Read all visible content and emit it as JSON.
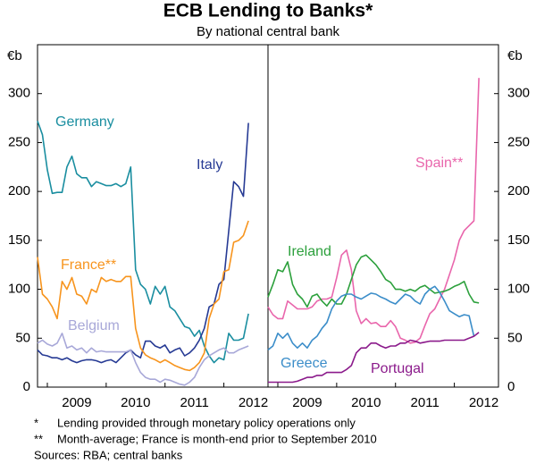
{
  "title": "ECB Lending to Banks*",
  "subtitle": "By national central bank",
  "notes": [
    {
      "marker": "*",
      "text": "Lending provided through monetary policy operations only"
    },
    {
      "marker": "**",
      "text": "Month-average; France is month-end prior to September 2010"
    }
  ],
  "sources": "Sources: RBA; central banks",
  "chart_data": [
    {
      "type": "line",
      "y_unit": "€b",
      "axis_side": "left",
      "x": [
        2008.833,
        2008.917,
        2009,
        2009.083,
        2009.167,
        2009.25,
        2009.333,
        2009.417,
        2009.5,
        2009.583,
        2009.667,
        2009.75,
        2009.833,
        2009.917,
        2010,
        2010.083,
        2010.167,
        2010.25,
        2010.333,
        2010.417,
        2010.5,
        2010.583,
        2010.667,
        2010.75,
        2010.833,
        2010.917,
        2011,
        2011.083,
        2011.167,
        2011.25,
        2011.333,
        2011.417,
        2011.5,
        2011.583,
        2011.667,
        2011.75,
        2011.833,
        2011.917,
        2012,
        2012.083,
        2012.167,
        2012.25,
        2012.333,
        2012.417
      ],
      "xlim": [
        2008.833,
        2012.75
      ],
      "xticks": [
        2009,
        2010,
        2011,
        2012
      ],
      "ylim": [
        0,
        350
      ],
      "yticks": [
        0,
        50,
        100,
        150,
        200,
        250,
        300
      ],
      "series": [
        {
          "name": "Germany",
          "color": "#1a8ea0",
          "values": [
            272,
            258,
            222,
            198,
            199,
            199,
            225,
            236,
            218,
            214,
            214,
            205,
            210,
            208,
            206,
            206,
            208,
            205,
            208,
            225,
            120,
            105,
            100,
            85,
            103,
            95,
            103,
            82,
            78,
            70,
            62,
            60,
            52,
            58,
            42,
            32,
            25,
            30,
            28,
            55,
            48,
            48,
            50,
            75
          ]
        },
        {
          "name": "Italy",
          "color": "#263a94",
          "values": [
            38,
            33,
            32,
            30,
            30,
            28,
            30,
            27,
            25,
            27,
            28,
            28,
            27,
            25,
            27,
            28,
            25,
            30,
            35,
            38,
            33,
            30,
            47,
            47,
            42,
            40,
            43,
            35,
            38,
            40,
            32,
            35,
            40,
            48,
            60,
            82,
            85,
            105,
            110,
            160,
            210,
            205,
            195,
            270
          ]
        },
        {
          "name": "France**",
          "color": "#f7941d",
          "values": [
            133,
            95,
            90,
            82,
            70,
            108,
            100,
            112,
            95,
            93,
            85,
            100,
            97,
            112,
            108,
            110,
            108,
            108,
            113,
            113,
            60,
            40,
            33,
            30,
            28,
            25,
            28,
            25,
            22,
            20,
            18,
            17,
            20,
            25,
            35,
            70,
            85,
            90,
            118,
            120,
            148,
            150,
            155,
            170
          ]
        },
        {
          "name": "Belgium",
          "color": "#a8a8d8",
          "values": [
            45,
            48,
            44,
            42,
            45,
            55,
            40,
            42,
            38,
            40,
            35,
            40,
            36,
            37,
            36,
            36,
            36,
            36,
            36,
            38,
            25,
            15,
            10,
            8,
            8,
            5,
            8,
            7,
            5,
            3,
            2,
            5,
            10,
            20,
            28,
            32,
            35,
            38,
            40,
            35,
            35,
            38,
            40,
            42
          ]
        }
      ]
    },
    {
      "type": "line",
      "y_unit": "€b",
      "axis_side": "right",
      "x": [
        2008.833,
        2008.917,
        2009,
        2009.083,
        2009.167,
        2009.25,
        2009.333,
        2009.417,
        2009.5,
        2009.583,
        2009.667,
        2009.75,
        2009.833,
        2009.917,
        2010,
        2010.083,
        2010.167,
        2010.25,
        2010.333,
        2010.417,
        2010.5,
        2010.583,
        2010.667,
        2010.75,
        2010.833,
        2010.917,
        2011,
        2011.083,
        2011.167,
        2011.25,
        2011.333,
        2011.417,
        2011.5,
        2011.583,
        2011.667,
        2011.75,
        2011.833,
        2011.917,
        2012,
        2012.083,
        2012.167,
        2012.25,
        2012.333,
        2012.417
      ],
      "xlim": [
        2008.833,
        2012.75
      ],
      "xticks": [
        2009,
        2010,
        2011,
        2012
      ],
      "ylim": [
        0,
        350
      ],
      "yticks": [
        0,
        50,
        100,
        150,
        200,
        250,
        300
      ],
      "series": [
        {
          "name": "Spain**",
          "color": "#e966ac",
          "values": [
            82,
            74,
            70,
            70,
            88,
            84,
            80,
            80,
            80,
            82,
            88,
            90,
            90,
            92,
            112,
            135,
            140,
            120,
            78,
            65,
            70,
            65,
            66,
            62,
            62,
            68,
            62,
            50,
            48,
            45,
            46,
            50,
            63,
            75,
            80,
            90,
            100,
            115,
            130,
            150,
            160,
            165,
            170,
            316
          ]
        },
        {
          "name": "Ireland",
          "color": "#2ca03c",
          "values": [
            92,
            105,
            120,
            118,
            128,
            105,
            95,
            90,
            82,
            93,
            95,
            88,
            83,
            90,
            85,
            85,
            95,
            110,
            125,
            133,
            135,
            130,
            125,
            118,
            110,
            107,
            100,
            100,
            98,
            100,
            98,
            102,
            104,
            100,
            96,
            97,
            98,
            100,
            103,
            105,
            108,
            95,
            87,
            86
          ]
        },
        {
          "name": "Greece",
          "color": "#3b8dc9",
          "values": [
            38,
            42,
            55,
            50,
            55,
            45,
            40,
            45,
            40,
            48,
            52,
            60,
            66,
            80,
            88,
            93,
            95,
            95,
            92,
            90,
            93,
            96,
            95,
            92,
            90,
            87,
            85,
            90,
            95,
            93,
            88,
            85,
            95,
            100,
            103,
            97,
            88,
            78,
            75,
            72,
            74,
            73,
            52,
            null
          ]
        },
        {
          "name": "Portugal",
          "color": "#8b1a8b",
          "values": [
            5,
            5,
            5,
            5,
            5,
            5,
            6,
            8,
            10,
            10,
            12,
            12,
            15,
            15,
            15,
            15,
            18,
            22,
            35,
            40,
            40,
            45,
            45,
            42,
            40,
            42,
            42,
            45,
            45,
            48,
            47,
            45,
            46,
            47,
            47,
            47,
            48,
            48,
            48,
            48,
            48,
            50,
            52,
            56
          ]
        }
      ]
    }
  ]
}
